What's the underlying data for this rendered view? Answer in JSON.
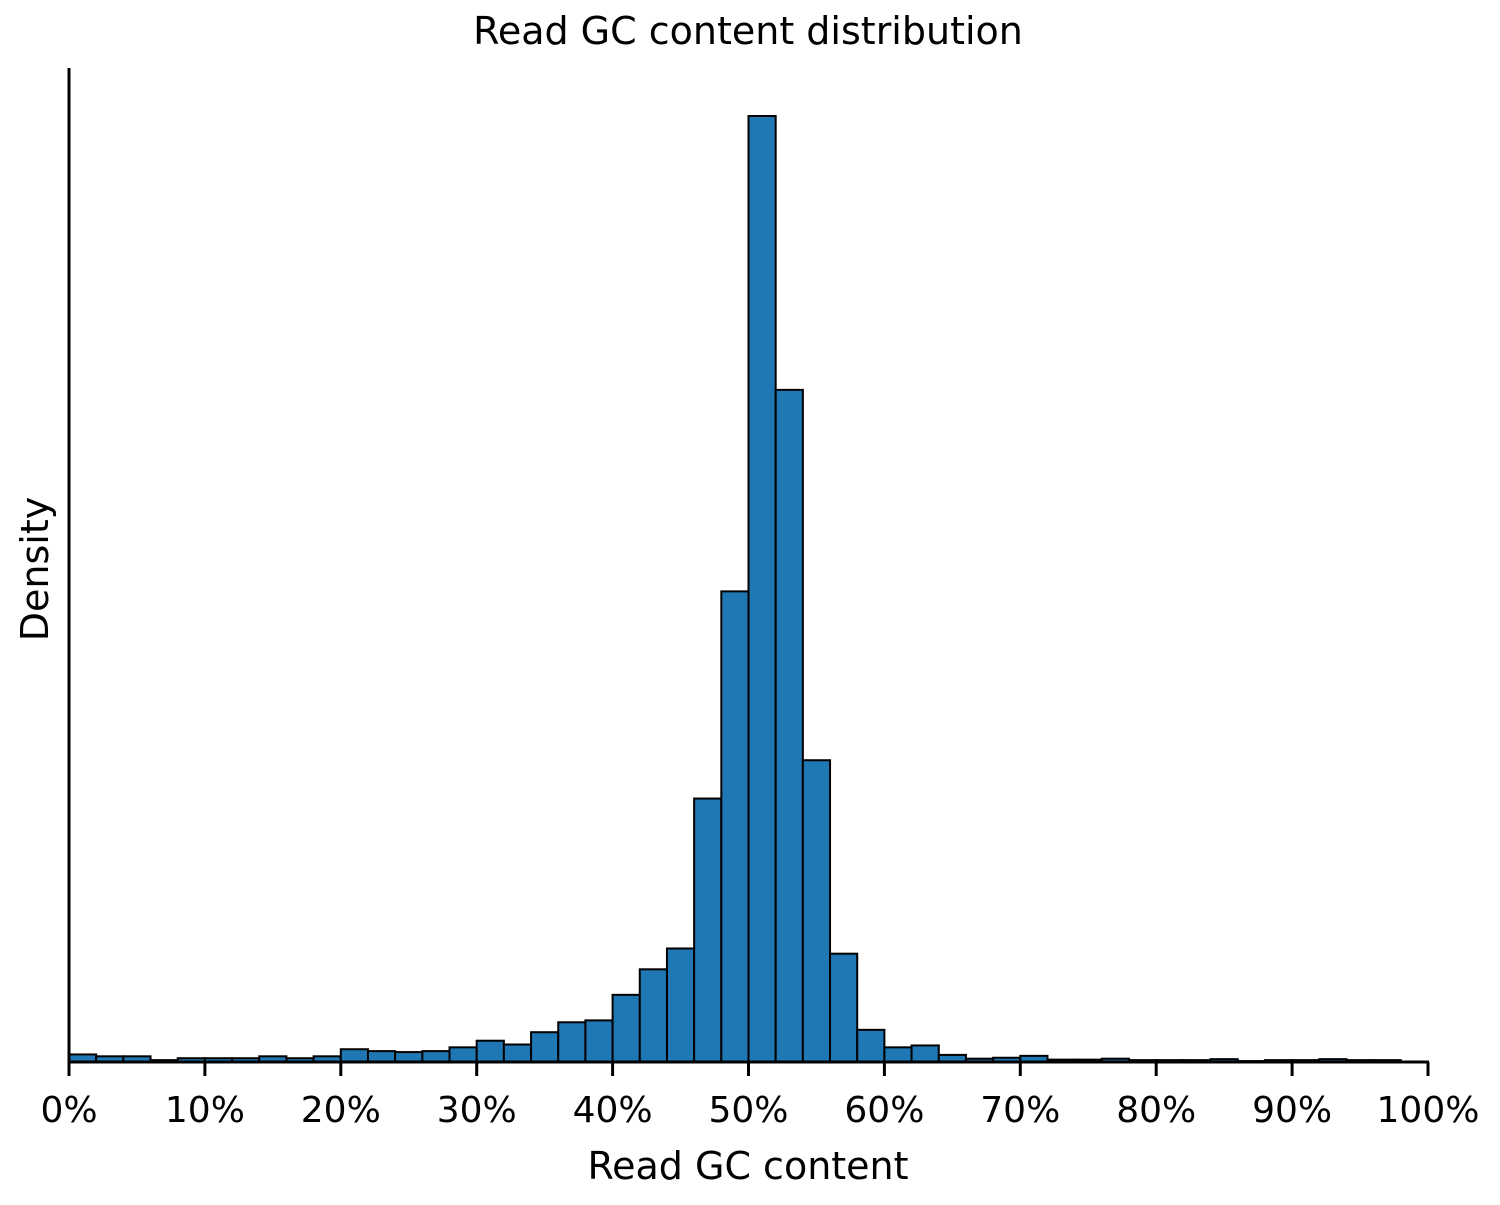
{
  "chart_data": {
    "type": "bar",
    "title": "Read GC content distribution",
    "xlabel": "Read GC content",
    "ylabel": "Density",
    "xlim": [
      0,
      100
    ],
    "x_unit": "%",
    "x_ticks": [
      0,
      10,
      20,
      30,
      40,
      50,
      60,
      70,
      80,
      90,
      100
    ],
    "x_tick_labels": [
      "0%",
      "10%",
      "20%",
      "30%",
      "40%",
      "50%",
      "60%",
      "70%",
      "80%",
      "90%",
      "100%"
    ],
    "y_ticks_shown": false,
    "bin_width": 2,
    "bins_start": [
      0,
      2,
      4,
      6,
      8,
      10,
      12,
      14,
      16,
      18,
      20,
      22,
      24,
      26,
      28,
      30,
      32,
      34,
      36,
      38,
      40,
      42,
      44,
      46,
      48,
      50,
      52,
      54,
      56,
      58,
      60,
      62,
      64,
      66,
      68,
      70,
      72,
      74,
      76,
      78,
      80,
      82,
      84,
      86,
      88,
      90,
      92,
      94,
      96
    ],
    "values": [
      0.008,
      0.006,
      0.006,
      0.002,
      0.004,
      0.004,
      0.004,
      0.006,
      0.004,
      0.006,
      0.0135,
      0.0115,
      0.0105,
      0.0115,
      0.0155,
      0.0225,
      0.0185,
      0.0315,
      0.042,
      0.044,
      0.071,
      0.098,
      0.12,
      0.2785,
      0.4975,
      1.0,
      0.7105,
      0.319,
      0.1145,
      0.034,
      0.0155,
      0.0175,
      0.0075,
      0.0035,
      0.0045,
      0.0065,
      0.0025,
      0.0025,
      0.0035,
      0.002,
      0.002,
      0.002,
      0.003,
      0.001,
      0.002,
      0.002,
      0.003,
      0.002,
      0.002
    ],
    "bar_color": "#1f77b4",
    "edge_color": "#000000",
    "grid": false
  }
}
